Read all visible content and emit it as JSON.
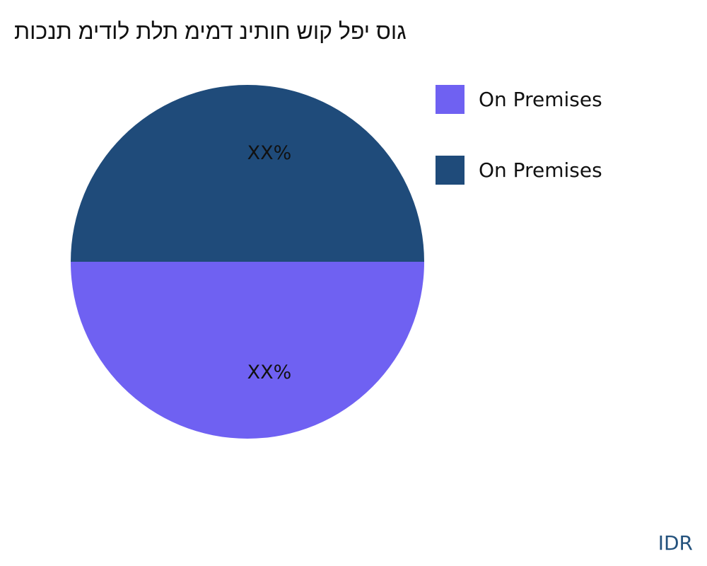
{
  "chart_data": {
    "type": "pie",
    "title": "גוס יפל קוש חותינ דמימ תלת לודימ תנכות",
    "slices": [
      {
        "name": "On Premises",
        "value": 50,
        "label": "XX%",
        "color": "#6f61f2"
      },
      {
        "name": "On Premises",
        "value": 50,
        "label": "XX%",
        "color": "#1f4b7a"
      }
    ],
    "legend_position": "right"
  },
  "brand": "IDR"
}
